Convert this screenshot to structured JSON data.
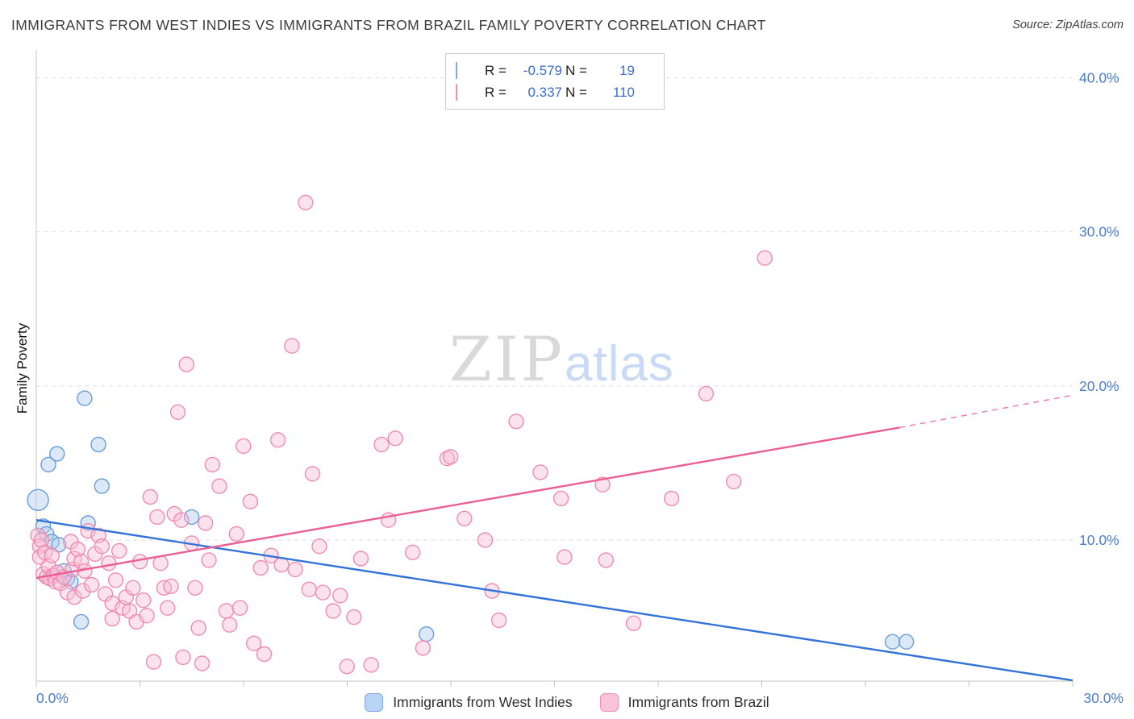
{
  "header": {
    "title": "IMMIGRANTS FROM WEST INDIES VS IMMIGRANTS FROM BRAZIL FAMILY POVERTY CORRELATION CHART",
    "source": "Source: ZipAtlas.com"
  },
  "correlation_box": {
    "rows": [
      {
        "series": "west-indies",
        "r_label": "R =",
        "r_value": "-0.579",
        "n_label": "N =",
        "n_value": "19"
      },
      {
        "series": "brazil",
        "r_label": "R =",
        "r_value": "0.337",
        "n_label": "N =",
        "n_value": "110"
      }
    ]
  },
  "watermark": {
    "part1": "ZIP",
    "part2": "atlas"
  },
  "bottom_legend": [
    {
      "label": "Immigrants from West Indies"
    },
    {
      "label": "Immigrants from Brazil"
    }
  ],
  "chart_data": {
    "type": "scatter",
    "title": "Immigrants from West Indies vs Immigrants from Brazil Family Poverty Correlation Chart",
    "xlabel": "",
    "ylabel": "Family Poverty",
    "legend_position": "bottom",
    "grid": "horizontal-dashed",
    "x_axis": {
      "min": 0,
      "max": 30.02,
      "minor_tick_count": 10,
      "tick_labels": [
        {
          "label": "0.0%",
          "anchor": "left"
        },
        {
          "label": "30.0%",
          "anchor": "right"
        }
      ]
    },
    "y_axis": {
      "min": 0.85,
      "max": 41.8,
      "gridlines": [
        {
          "value": 10,
          "label": "10.0%"
        },
        {
          "value": 20,
          "label": "20.0%"
        },
        {
          "value": 30,
          "label": "30.0%"
        },
        {
          "value": 40,
          "label": "40.0%"
        }
      ]
    },
    "series": [
      {
        "name": "Immigrants from West Indies",
        "r": -0.579,
        "n": 19,
        "fill": "#aeccf0",
        "stroke": "#6398d8",
        "line_color": "#3373d9",
        "points": [
          [
            0.05,
            12.6,
            13
          ],
          [
            0.2,
            10.9
          ],
          [
            0.3,
            10.4
          ],
          [
            0.35,
            14.9
          ],
          [
            0.45,
            9.9
          ],
          [
            0.6,
            15.6
          ],
          [
            0.65,
            9.7
          ],
          [
            0.8,
            8.0
          ],
          [
            0.9,
            7.5
          ],
          [
            1.0,
            7.3
          ],
          [
            1.3,
            4.7
          ],
          [
            1.4,
            19.2
          ],
          [
            1.5,
            11.1
          ],
          [
            1.8,
            16.2
          ],
          [
            1.9,
            13.5
          ],
          [
            4.5,
            11.5
          ],
          [
            11.3,
            3.9
          ],
          [
            24.8,
            3.4
          ],
          [
            25.2,
            3.4
          ]
        ],
        "trend": {
          "solid": [
            [
              0,
              11.3
            ],
            [
              30.02,
              0.9
            ]
          ]
        }
      },
      {
        "name": "Immigrants from Brazil",
        "r": 0.337,
        "n": 110,
        "fill": "#f9bed4",
        "stroke": "#ee86ae",
        "line_color": "#ec5f94",
        "points": [
          [
            0.05,
            10.3
          ],
          [
            0.1,
            9.6
          ],
          [
            0.1,
            8.9
          ],
          [
            0.15,
            10.0
          ],
          [
            0.2,
            7.8
          ],
          [
            0.25,
            9.2
          ],
          [
            0.3,
            7.6
          ],
          [
            0.35,
            8.3
          ],
          [
            0.4,
            7.5
          ],
          [
            0.45,
            9.0
          ],
          [
            0.5,
            7.7
          ],
          [
            0.55,
            7.3
          ],
          [
            0.6,
            7.9
          ],
          [
            0.7,
            7.2
          ],
          [
            0.8,
            7.6
          ],
          [
            0.9,
            6.6
          ],
          [
            1.0,
            9.9
          ],
          [
            1.05,
            8.1
          ],
          [
            1.1,
            8.8
          ],
          [
            1.1,
            6.3
          ],
          [
            1.2,
            9.4
          ],
          [
            1.3,
            8.6
          ],
          [
            1.35,
            6.7
          ],
          [
            1.4,
            8.0
          ],
          [
            1.5,
            10.6
          ],
          [
            1.6,
            7.1
          ],
          [
            1.7,
            9.1
          ],
          [
            1.8,
            10.3
          ],
          [
            1.9,
            9.6
          ],
          [
            2.0,
            6.5
          ],
          [
            2.1,
            8.5
          ],
          [
            2.2,
            5.9
          ],
          [
            2.2,
            4.9
          ],
          [
            2.3,
            7.4
          ],
          [
            2.4,
            9.3
          ],
          [
            2.5,
            5.6
          ],
          [
            2.6,
            6.3
          ],
          [
            2.7,
            5.4
          ],
          [
            2.8,
            6.9
          ],
          [
            2.9,
            4.7
          ],
          [
            3.0,
            8.6
          ],
          [
            3.1,
            6.1
          ],
          [
            3.2,
            5.1
          ],
          [
            3.3,
            12.8
          ],
          [
            3.4,
            2.1
          ],
          [
            3.5,
            11.5
          ],
          [
            3.6,
            8.5
          ],
          [
            3.7,
            6.9
          ],
          [
            3.8,
            5.6
          ],
          [
            3.9,
            7.0
          ],
          [
            4.0,
            11.7
          ],
          [
            4.1,
            18.3
          ],
          [
            4.2,
            11.3
          ],
          [
            4.25,
            2.4
          ],
          [
            4.35,
            21.4
          ],
          [
            4.5,
            9.8
          ],
          [
            4.6,
            6.9
          ],
          [
            4.7,
            4.3
          ],
          [
            4.8,
            2.0
          ],
          [
            4.9,
            11.1
          ],
          [
            5.0,
            8.7
          ],
          [
            5.1,
            14.9
          ],
          [
            5.3,
            13.5
          ],
          [
            5.5,
            5.4
          ],
          [
            5.6,
            4.5
          ],
          [
            5.8,
            10.4
          ],
          [
            5.9,
            5.6
          ],
          [
            6.0,
            16.1
          ],
          [
            6.2,
            12.5
          ],
          [
            6.3,
            3.3
          ],
          [
            6.5,
            8.2
          ],
          [
            6.6,
            2.6
          ],
          [
            6.8,
            9.0
          ],
          [
            7.0,
            16.5
          ],
          [
            7.1,
            8.4
          ],
          [
            7.4,
            22.6
          ],
          [
            7.5,
            8.1
          ],
          [
            7.8,
            31.9
          ],
          [
            7.9,
            6.8
          ],
          [
            8.0,
            14.3
          ],
          [
            8.2,
            9.6
          ],
          [
            8.3,
            6.6
          ],
          [
            8.6,
            5.4
          ],
          [
            8.8,
            6.4
          ],
          [
            9.0,
            1.8
          ],
          [
            9.2,
            5.0
          ],
          [
            9.4,
            8.8
          ],
          [
            9.7,
            1.9
          ],
          [
            10.0,
            16.2
          ],
          [
            10.2,
            11.3
          ],
          [
            10.4,
            16.6
          ],
          [
            10.9,
            9.2
          ],
          [
            11.2,
            3.0
          ],
          [
            11.9,
            15.3
          ],
          [
            12.0,
            15.4
          ],
          [
            12.4,
            11.4
          ],
          [
            13.0,
            10.0
          ],
          [
            13.2,
            6.7
          ],
          [
            13.4,
            4.8
          ],
          [
            13.9,
            17.7
          ],
          [
            14.6,
            14.4
          ],
          [
            15.2,
            12.7
          ],
          [
            15.3,
            8.9
          ],
          [
            16.4,
            13.6
          ],
          [
            16.5,
            8.7
          ],
          [
            17.3,
            4.6
          ],
          [
            18.4,
            12.7
          ],
          [
            19.4,
            19.5
          ],
          [
            20.2,
            13.8
          ],
          [
            21.1,
            28.3
          ]
        ],
        "trend": {
          "solid": [
            [
              0,
              7.55
            ],
            [
              25.0,
              17.3
            ]
          ],
          "dashed": [
            [
              25.0,
              17.3
            ],
            [
              30.02,
              19.4
            ]
          ]
        }
      }
    ]
  }
}
